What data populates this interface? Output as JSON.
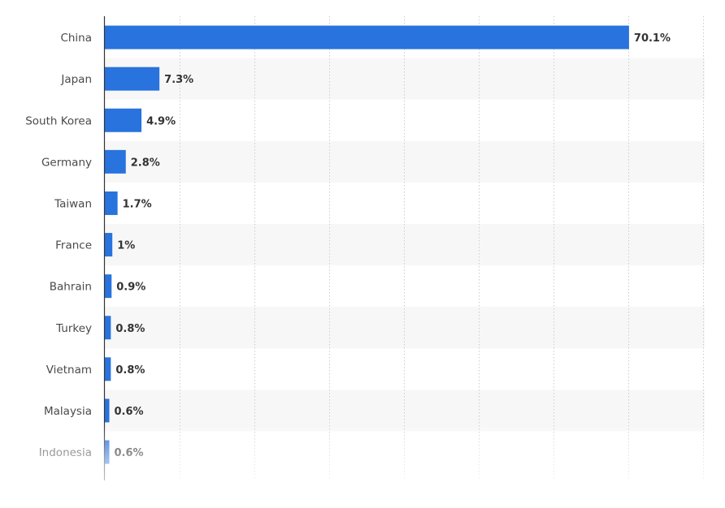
{
  "chart_data": {
    "type": "bar",
    "orientation": "horizontal",
    "categories": [
      "China",
      "Japan",
      "South Korea",
      "Germany",
      "Taiwan",
      "France",
      "Bahrain",
      "Turkey",
      "Vietnam",
      "Malaysia",
      "Indonesia"
    ],
    "values": [
      70.1,
      7.3,
      4.9,
      2.8,
      1.7,
      1,
      0.9,
      0.8,
      0.8,
      0.6,
      0.6
    ],
    "value_labels": [
      "70.1%",
      "7.3%",
      "4.9%",
      "2.8%",
      "1.7%",
      "1%",
      "0.9%",
      "0.8%",
      "0.8%",
      "0.6%",
      "0.6%"
    ],
    "xlim": [
      0,
      80
    ],
    "grid": true,
    "title": "",
    "xlabel": "",
    "ylabel": "",
    "colors": {
      "bar": "#2873dd",
      "band": "#f7f7f7",
      "grid": "#cccccc",
      "axis": "#333333"
    }
  }
}
